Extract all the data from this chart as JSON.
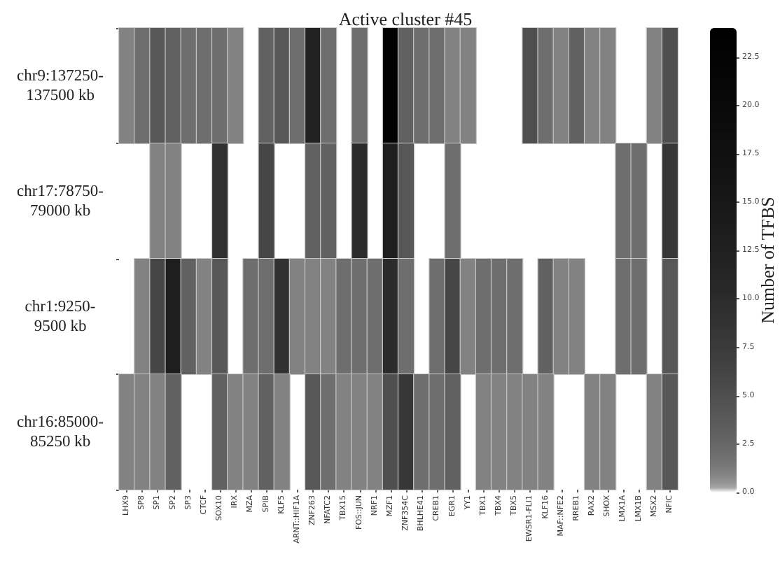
{
  "chart_data": {
    "type": "heatmap",
    "title": "Active cluster #45",
    "clabel": "Number of TFBS",
    "categories": [
      "LHX9",
      "SP8",
      "SP1",
      "SP2",
      "SP3",
      "CTCF",
      "SOX10",
      "IRX",
      "MZA",
      "SPIB",
      "KLF5",
      "ARNT::HIF1A",
      "ZNF263",
      "NFATC2",
      "TBX15",
      "FOS::JUN",
      "NRF1",
      "MZF1",
      "ZNF354C",
      "BHLHE41",
      "CREB1",
      "EGR1",
      "YY1",
      "TBX1",
      "TBX4",
      "TBX5",
      "EWSR1-FLI1",
      "KLF16",
      "MAF::NFE2",
      "RREB1",
      "RAX2",
      "SHOX",
      "LMX1A",
      "LMX1B",
      "MSX2",
      "NFIC"
    ],
    "y_categories": [
      "chr9:137250-137500 kb",
      "chr17:78750-79000 kb",
      "chr1:9250-9500 kb",
      "chr16:85000-85250 kb"
    ],
    "cells": [
      [
        1,
        2,
        4,
        3,
        2,
        2,
        2,
        1,
        null,
        3,
        4,
        2,
        12,
        2,
        null,
        2,
        null,
        23,
        3,
        2,
        2,
        1,
        1,
        null,
        null,
        null,
        5,
        2,
        1,
        3,
        1,
        1,
        null,
        null,
        1,
        5
      ],
      [
        null,
        null,
        1,
        1,
        null,
        null,
        9,
        null,
        null,
        6,
        null,
        null,
        3,
        3,
        null,
        10,
        null,
        13,
        4,
        null,
        null,
        2,
        null,
        null,
        null,
        null,
        null,
        null,
        null,
        null,
        null,
        null,
        2,
        2,
        null,
        8
      ],
      [
        null,
        1,
        6,
        13,
        3,
        1,
        4,
        null,
        2,
        2,
        9,
        1,
        1,
        1,
        2,
        2,
        2,
        10,
        2,
        null,
        2,
        6,
        1,
        2,
        2,
        2,
        null,
        3,
        1,
        1,
        null,
        null,
        2,
        2,
        null,
        4
      ],
      [
        1,
        1,
        1,
        3,
        null,
        null,
        3,
        1,
        1,
        3,
        1,
        null,
        4,
        2,
        1,
        1,
        1,
        5,
        8,
        2,
        2,
        3,
        null,
        1,
        1,
        1,
        1,
        1,
        null,
        null,
        1,
        1,
        null,
        null,
        1,
        4
      ]
    ],
    "clim": [
      0,
      24
    ],
    "cticks": [
      {
        "value": 0,
        "label": "0.0"
      },
      {
        "value": 2.5,
        "label": "2.5"
      },
      {
        "value": 5,
        "label": "5.0"
      },
      {
        "value": 7.5,
        "label": "7.5"
      },
      {
        "value": 10,
        "label": "10.0"
      },
      {
        "value": 12.5,
        "label": "12.5"
      },
      {
        "value": 15,
        "label": "15.0"
      },
      {
        "value": 17.5,
        "label": "17.5"
      },
      {
        "value": 20,
        "label": "20.0"
      },
      {
        "value": 22.5,
        "label": "22.5"
      }
    ]
  }
}
